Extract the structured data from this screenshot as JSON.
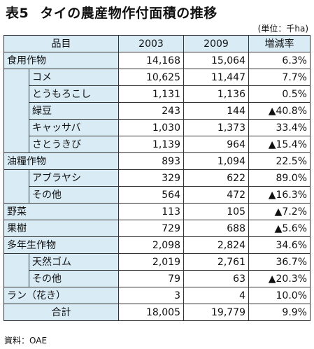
{
  "title": {
    "number": "表5",
    "text": "タイの農産物作付面積の推移"
  },
  "unit": "(単位：千ha)",
  "header": {
    "item": "品目",
    "col1": "2003",
    "col2": "2009",
    "col3": "増減率"
  },
  "rows": [
    {
      "name": "食用作物",
      "v2003": "14,168",
      "v2009": "15,064",
      "change": "6.3%"
    },
    {
      "name": "コメ",
      "v2003": "10,625",
      "v2009": "11,447",
      "change": "7.7%"
    },
    {
      "name": "とうもろこし",
      "v2003": "1,131",
      "v2009": "1,136",
      "change": "0.5%"
    },
    {
      "name": "緑豆",
      "v2003": "243",
      "v2009": "144",
      "change": "▲40.8%"
    },
    {
      "name": "キャッサバ",
      "v2003": "1,030",
      "v2009": "1,373",
      "change": "33.4%"
    },
    {
      "name": "さとうきび",
      "v2003": "1,139",
      "v2009": "964",
      "change": "▲15.4%"
    },
    {
      "name": "油糧作物",
      "v2003": "893",
      "v2009": "1,094",
      "change": "22.5%"
    },
    {
      "name": "アブラヤシ",
      "v2003": "329",
      "v2009": "622",
      "change": "89.0%"
    },
    {
      "name": "その他",
      "v2003": "564",
      "v2009": "472",
      "change": "▲16.3%"
    },
    {
      "name": "野菜",
      "v2003": "113",
      "v2009": "105",
      "change": "▲7.2%"
    },
    {
      "name": "果樹",
      "v2003": "729",
      "v2009": "688",
      "change": "▲5.6%"
    },
    {
      "name": "多年生作物",
      "v2003": "2,098",
      "v2009": "2,824",
      "change": "34.6%"
    },
    {
      "name": "天然ゴム",
      "v2003": "2,019",
      "v2009": "2,761",
      "change": "36.7%"
    },
    {
      "name": "その他",
      "v2003": "79",
      "v2009": "63",
      "change": "▲20.3%"
    },
    {
      "name": "ラン（花き）",
      "v2003": "3",
      "v2009": "4",
      "change": "10.0%"
    },
    {
      "name": "合計",
      "v2003": "18,005",
      "v2009": "19,779",
      "change": "9.9%"
    }
  ],
  "source": "資料：OAE"
}
